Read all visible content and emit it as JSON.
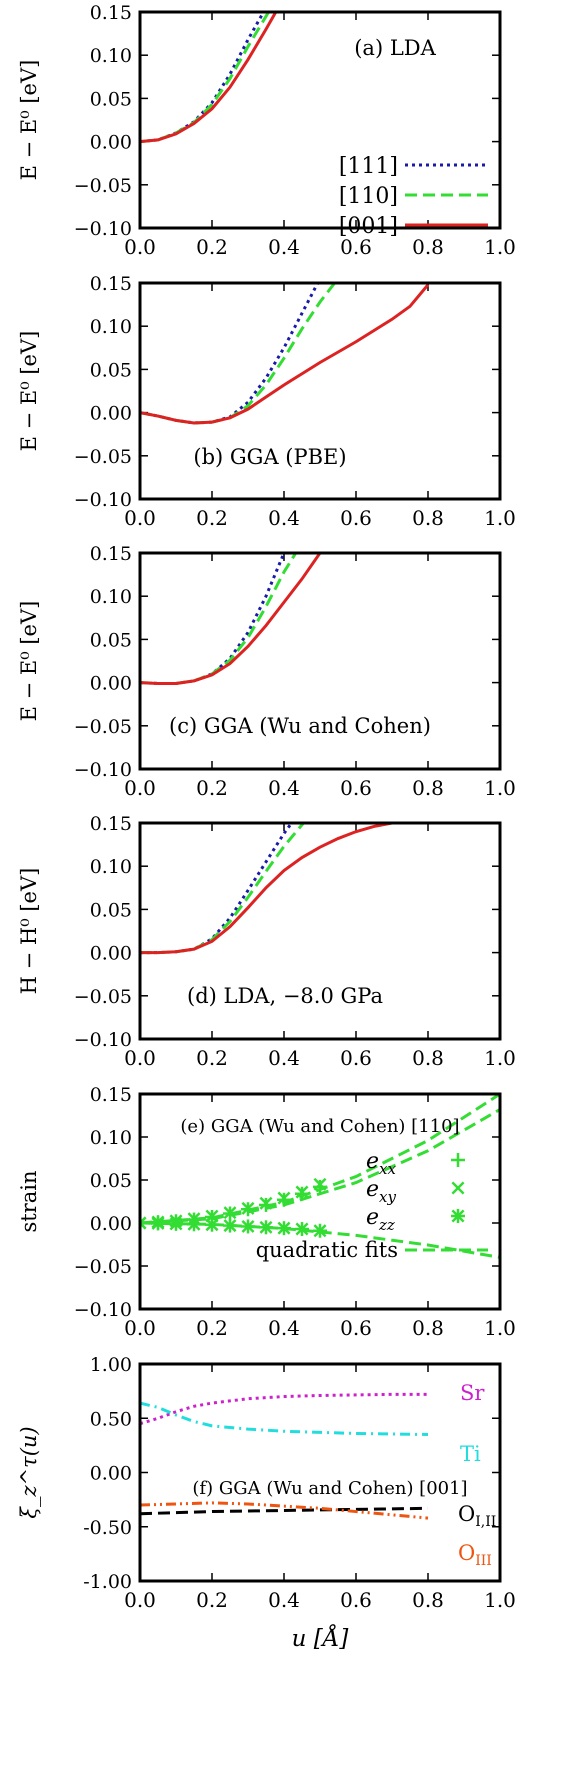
{
  "colors": {
    "s111": "#1a1aa8",
    "s110": "#33dd33",
    "s001": "#dd2222",
    "sr": "#cc22cc",
    "ti": "#22dddd",
    "o12": "#000000",
    "o3": "#ee5511",
    "strain": "#33dd33"
  },
  "x_axis_label": "u [Å]",
  "chart_data": [
    {
      "type": "line",
      "annotation": "(a) LDA",
      "ylabel": "E − E⁰ [eV]",
      "xlim": [
        0.0,
        1.0
      ],
      "ylim": [
        -0.1,
        0.15
      ],
      "xticks": [
        "0.0",
        "0.2",
        "0.4",
        "0.6",
        "0.8",
        "1.0"
      ],
      "yticks": [
        "−0.10",
        "−0.05",
        "0.00",
        "0.05",
        "0.10",
        "0.15"
      ],
      "legend": {
        "position": "lower-right",
        "entries": [
          "[111]",
          "[110]",
          "[001]"
        ]
      },
      "series": [
        {
          "name": "[111]",
          "style": "dotted",
          "x": [
            0,
            0.05,
            0.1,
            0.15,
            0.2,
            0.25,
            0.3,
            0.35
          ],
          "y": [
            0,
            0.002,
            0.01,
            0.023,
            0.045,
            0.078,
            0.118,
            0.155
          ]
        },
        {
          "name": "[110]",
          "style": "dashed",
          "x": [
            0,
            0.05,
            0.1,
            0.15,
            0.2,
            0.25,
            0.3,
            0.35,
            0.36
          ],
          "y": [
            0,
            0.002,
            0.01,
            0.022,
            0.043,
            0.073,
            0.11,
            0.145,
            0.152
          ]
        },
        {
          "name": "[001]",
          "style": "solid",
          "x": [
            0,
            0.05,
            0.1,
            0.15,
            0.2,
            0.25,
            0.3,
            0.35,
            0.38
          ],
          "y": [
            0,
            0.002,
            0.009,
            0.021,
            0.038,
            0.063,
            0.095,
            0.13,
            0.152
          ]
        }
      ]
    },
    {
      "type": "line",
      "annotation": "(b) GGA (PBE)",
      "ylabel": "E − E⁰ [eV]",
      "xlim": [
        0.0,
        1.0
      ],
      "ylim": [
        -0.1,
        0.15
      ],
      "xticks": [
        "0.0",
        "0.2",
        "0.4",
        "0.6",
        "0.8",
        "1.0"
      ],
      "yticks": [
        "−0.10",
        "−0.05",
        "0.00",
        "0.05",
        "0.10",
        "0.15"
      ],
      "series": [
        {
          "name": "[111]",
          "style": "dotted",
          "x": [
            0,
            0.05,
            0.1,
            0.15,
            0.2,
            0.25,
            0.3,
            0.35,
            0.4,
            0.45,
            0.5
          ],
          "y": [
            0,
            -0.004,
            -0.009,
            -0.012,
            -0.011,
            -0.005,
            0.012,
            0.04,
            0.075,
            0.115,
            0.155
          ]
        },
        {
          "name": "[110]",
          "style": "dashed",
          "x": [
            0,
            0.05,
            0.1,
            0.15,
            0.2,
            0.25,
            0.3,
            0.35,
            0.4,
            0.45,
            0.5,
            0.55
          ],
          "y": [
            0,
            -0.004,
            -0.009,
            -0.012,
            -0.011,
            -0.006,
            0.008,
            0.032,
            0.063,
            0.097,
            0.128,
            0.155
          ]
        },
        {
          "name": "[001]",
          "style": "solid",
          "x": [
            0,
            0.05,
            0.1,
            0.15,
            0.2,
            0.25,
            0.3,
            0.35,
            0.4,
            0.45,
            0.5,
            0.55,
            0.6,
            0.65,
            0.7,
            0.75,
            0.8
          ],
          "y": [
            0,
            -0.004,
            -0.009,
            -0.012,
            -0.011,
            -0.006,
            0.004,
            0.018,
            0.032,
            0.045,
            0.058,
            0.07,
            0.082,
            0.095,
            0.108,
            0.123,
            0.148
          ]
        }
      ]
    },
    {
      "type": "line",
      "annotation": "(c) GGA (Wu and Cohen)",
      "ylabel": "E − E⁰ [eV]",
      "xlim": [
        0.0,
        1.0
      ],
      "ylim": [
        -0.1,
        0.15
      ],
      "xticks": [
        "0.0",
        "0.2",
        "0.4",
        "0.6",
        "0.8",
        "1.0"
      ],
      "yticks": [
        "−0.10",
        "−0.05",
        "0.00",
        "0.05",
        "0.10",
        "0.15"
      ],
      "series": [
        {
          "name": "[111]",
          "style": "dotted",
          "x": [
            0,
            0.05,
            0.1,
            0.15,
            0.2,
            0.25,
            0.3,
            0.35,
            0.4
          ],
          "y": [
            0,
            -0.001,
            -0.001,
            0.002,
            0.01,
            0.028,
            0.058,
            0.1,
            0.15
          ]
        },
        {
          "name": "[110]",
          "style": "dashed",
          "x": [
            0,
            0.05,
            0.1,
            0.15,
            0.2,
            0.25,
            0.3,
            0.35,
            0.4,
            0.44
          ],
          "y": [
            0,
            -0.001,
            -0.001,
            0.002,
            0.01,
            0.026,
            0.052,
            0.088,
            0.128,
            0.155
          ]
        },
        {
          "name": "[001]",
          "style": "solid",
          "x": [
            0,
            0.05,
            0.1,
            0.15,
            0.2,
            0.25,
            0.3,
            0.35,
            0.4,
            0.45,
            0.5
          ],
          "y": [
            0,
            -0.001,
            -0.001,
            0.002,
            0.009,
            0.022,
            0.042,
            0.066,
            0.093,
            0.12,
            0.15
          ]
        }
      ]
    },
    {
      "type": "line",
      "annotation": "(d) LDA, −8.0 GPa",
      "ylabel": "H − H⁰ [eV]",
      "xlim": [
        0.0,
        1.0
      ],
      "ylim": [
        -0.1,
        0.15
      ],
      "xticks": [
        "0.0",
        "0.2",
        "0.4",
        "0.6",
        "0.8",
        "1.0"
      ],
      "yticks": [
        "−0.10",
        "−0.05",
        "0.00",
        "0.05",
        "0.10",
        "0.15"
      ],
      "series": [
        {
          "name": "[111]",
          "style": "dotted",
          "x": [
            0,
            0.05,
            0.1,
            0.15,
            0.2,
            0.25,
            0.3,
            0.35,
            0.4,
            0.43
          ],
          "y": [
            0,
            0,
            0.001,
            0.004,
            0.016,
            0.04,
            0.072,
            0.105,
            0.138,
            0.155
          ]
        },
        {
          "name": "[110]",
          "style": "dashed",
          "x": [
            0,
            0.05,
            0.1,
            0.15,
            0.2,
            0.25,
            0.3,
            0.35,
            0.4,
            0.45,
            0.46
          ],
          "y": [
            0,
            0,
            0.001,
            0.004,
            0.015,
            0.036,
            0.064,
            0.094,
            0.123,
            0.148,
            0.153
          ]
        },
        {
          "name": "[001]",
          "style": "solid",
          "x": [
            0,
            0.05,
            0.1,
            0.15,
            0.2,
            0.25,
            0.3,
            0.35,
            0.4,
            0.45,
            0.5,
            0.55,
            0.6,
            0.65,
            0.7
          ],
          "y": [
            0,
            0,
            0.001,
            0.004,
            0.013,
            0.03,
            0.052,
            0.075,
            0.095,
            0.11,
            0.122,
            0.132,
            0.14,
            0.146,
            0.15
          ]
        }
      ]
    },
    {
      "type": "scatter",
      "annotation": "(e) GGA (Wu and Cohen) [110]",
      "ylabel": "strain",
      "xlim": [
        0.0,
        1.0
      ],
      "ylim": [
        -0.1,
        0.15
      ],
      "xticks": [
        "0.0",
        "0.2",
        "0.4",
        "0.6",
        "0.8",
        "1.0"
      ],
      "yticks": [
        "−0.10",
        "−0.05",
        "0.00",
        "0.05",
        "0.10",
        "0.15"
      ],
      "legend": {
        "position": "right",
        "entries": [
          "e_xx",
          "e_xy",
          "e_zz",
          "quadratic fits"
        ]
      },
      "series": [
        {
          "name": "e_xx",
          "marker": "plus",
          "x": [
            0,
            0.05,
            0.1,
            0.15,
            0.2,
            0.25,
            0.3,
            0.35,
            0.4,
            0.45,
            0.5
          ],
          "y": [
            0,
            0.001,
            0.002,
            0.004,
            0.007,
            0.011,
            0.016,
            0.021,
            0.027,
            0.034,
            0.042
          ]
        },
        {
          "name": "e_xy",
          "marker": "cross",
          "x": [
            0,
            0.05,
            0.1,
            0.15,
            0.2,
            0.25,
            0.3,
            0.35,
            0.4,
            0.45,
            0.5
          ],
          "y": [
            0,
            0.0012,
            0.0025,
            0.005,
            0.008,
            0.012,
            0.017,
            0.023,
            0.029,
            0.036,
            0.045
          ]
        },
        {
          "name": "e_zz",
          "marker": "star",
          "x": [
            0,
            0.05,
            0.1,
            0.15,
            0.2,
            0.25,
            0.3,
            0.35,
            0.4,
            0.45,
            0.5
          ],
          "y": [
            0,
            -0.0005,
            -0.001,
            -0.0015,
            -0.002,
            -0.003,
            -0.004,
            -0.005,
            -0.006,
            -0.007,
            -0.009
          ]
        },
        {
          "name": "quadratic fits",
          "style": "dashed",
          "fits": [
            {
              "x": [
                0,
                0.2,
                0.4,
                0.6,
                0.8,
                1.0
              ],
              "y": [
                0,
                0.006,
                0.024,
                0.054,
                0.096,
                0.15
              ]
            },
            {
              "x": [
                0,
                0.2,
                0.4,
                0.6,
                0.8,
                1.0
              ],
              "y": [
                0,
                0.005,
                0.021,
                0.047,
                0.084,
                0.132
              ]
            },
            {
              "x": [
                0,
                0.2,
                0.4,
                0.6,
                0.8,
                1.0
              ],
              "y": [
                0,
                -0.0016,
                -0.0064,
                -0.0144,
                -0.0256,
                -0.04
              ]
            }
          ]
        }
      ]
    },
    {
      "type": "line",
      "annotation": "(f) GGA (Wu and Cohen) [001]",
      "ylabel": "ξ_z^τ(u)",
      "xlabel": "u [Å]",
      "xlim": [
        0.0,
        1.0
      ],
      "ylim": [
        -1.0,
        1.0
      ],
      "xticks": [
        "0.0",
        "0.2",
        "0.4",
        "0.6",
        "0.8",
        "1.0"
      ],
      "yticks": [
        "-1.00",
        "-0.50",
        "0.00",
        "0.50",
        "1.00"
      ],
      "series": [
        {
          "name": "Sr",
          "style": "dotted",
          "x": [
            0,
            0.05,
            0.1,
            0.15,
            0.2,
            0.3,
            0.4,
            0.5,
            0.6,
            0.7,
            0.8
          ],
          "y": [
            0.45,
            0.5,
            0.56,
            0.61,
            0.64,
            0.68,
            0.7,
            0.71,
            0.715,
            0.72,
            0.72
          ]
        },
        {
          "name": "Ti",
          "style": "dashdot",
          "x": [
            0,
            0.05,
            0.1,
            0.15,
            0.2,
            0.3,
            0.4,
            0.5,
            0.6,
            0.7,
            0.8
          ],
          "y": [
            0.64,
            0.6,
            0.53,
            0.47,
            0.43,
            0.4,
            0.38,
            0.37,
            0.36,
            0.355,
            0.35
          ]
        },
        {
          "name": "O_I,II",
          "style": "dashed",
          "x": [
            0,
            0.1,
            0.2,
            0.3,
            0.4,
            0.5,
            0.6,
            0.7,
            0.8
          ],
          "y": [
            -0.38,
            -0.37,
            -0.36,
            -0.355,
            -0.35,
            -0.345,
            -0.34,
            -0.335,
            -0.33
          ]
        },
        {
          "name": "O_III",
          "style": "dashdotdot",
          "x": [
            0,
            0.1,
            0.2,
            0.3,
            0.4,
            0.5,
            0.6,
            0.7,
            0.8
          ],
          "y": [
            -0.3,
            -0.29,
            -0.28,
            -0.29,
            -0.31,
            -0.33,
            -0.36,
            -0.39,
            -0.42
          ]
        }
      ],
      "labels": [
        "Sr",
        "Ti",
        "O_I,II",
        "O_III"
      ]
    }
  ]
}
